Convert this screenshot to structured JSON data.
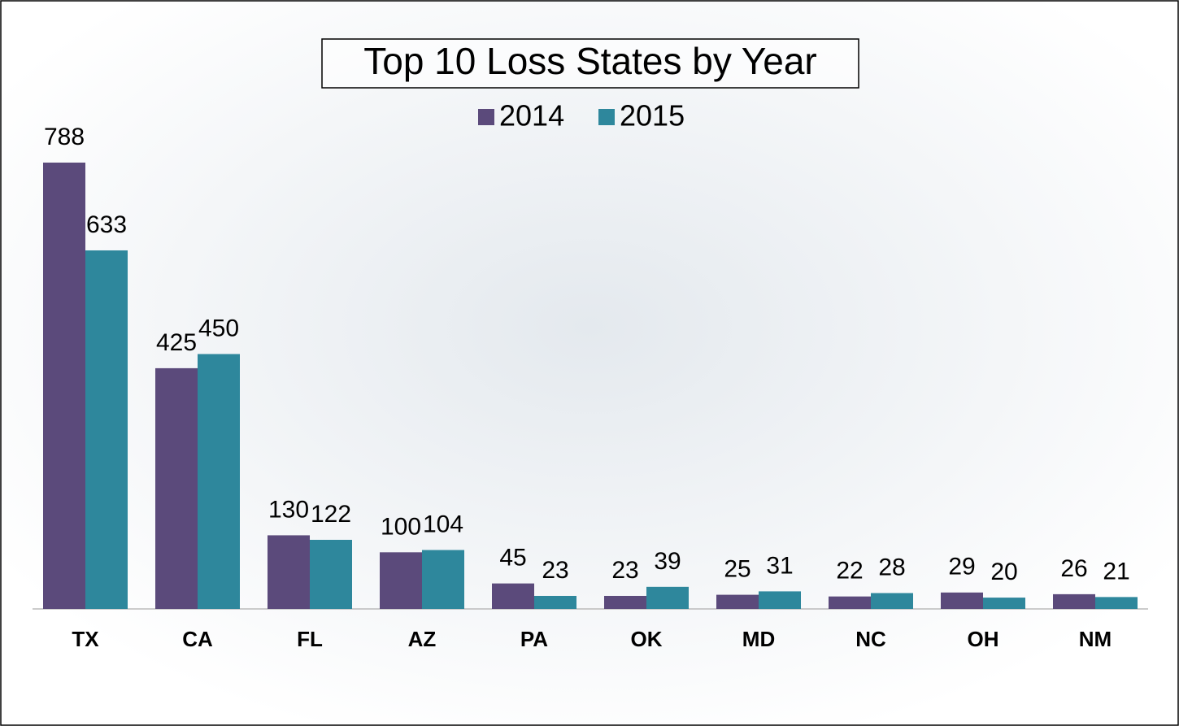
{
  "chart_data": {
    "type": "bar",
    "title": "Top 10 Loss States by Year",
    "categories": [
      "TX",
      "CA",
      "FL",
      "AZ",
      "PA",
      "OK",
      "MD",
      "NC",
      "OH",
      "NM"
    ],
    "series": [
      {
        "name": "2014",
        "color": "#5b4a7b",
        "values": [
          788,
          425,
          130,
          100,
          45,
          23,
          25,
          22,
          29,
          26
        ]
      },
      {
        "name": "2015",
        "color": "#2e879c",
        "values": [
          633,
          450,
          122,
          104,
          23,
          39,
          31,
          28,
          20,
          21
        ]
      }
    ]
  }
}
